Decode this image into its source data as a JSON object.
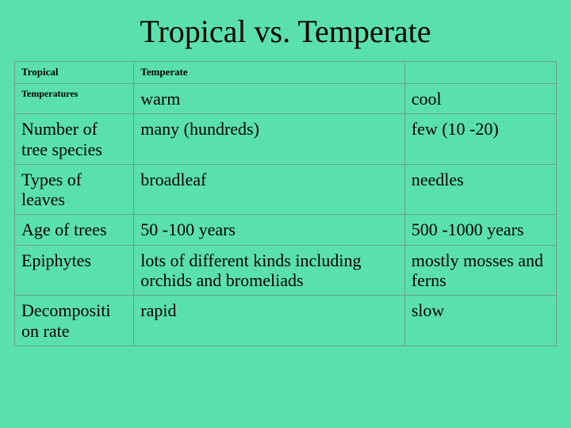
{
  "title": "Tropical vs. Temperate",
  "background_color": "#5ae0ad",
  "border_color": "#6aa088",
  "columns": [
    "attribute",
    "tropical",
    "temperate"
  ],
  "header": {
    "col0": "Tropical",
    "col1": "Temperate",
    "col2": ""
  },
  "rows": [
    {
      "label": "Temperatures",
      "label_style": "small",
      "tropical": "warm",
      "temperate": "cool"
    },
    {
      "label": "Number of tree species",
      "tropical": "many (hundreds)",
      "temperate": "few (10 -20)"
    },
    {
      "label": "Types of leaves",
      "tropical": "broadleaf",
      "temperate": "needles"
    },
    {
      "label": "Age of trees",
      "tropical": "50 -100 years",
      "temperate": "500 -1000 years"
    },
    {
      "label": "Epiphytes",
      "tropical": "lots of different kinds including orchids and bromeliads",
      "temperate": "mostly mosses and ferns"
    },
    {
      "label": "Decompositi on rate",
      "tropical": "rapid",
      "temperate": "slow"
    }
  ]
}
